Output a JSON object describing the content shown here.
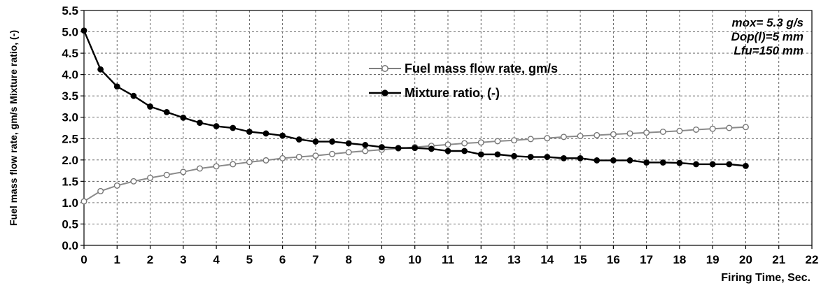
{
  "chart_data": {
    "type": "line",
    "xlabel": "Firing Time, Sec.",
    "ylabel": "Fuel mass flow rate, gm/s   Mixture ratio, (-)",
    "xlim": [
      0,
      22
    ],
    "ylim": [
      0,
      5.5
    ],
    "x_ticks": [
      "0",
      "1",
      "2",
      "3",
      "4",
      "5",
      "6",
      "7",
      "8",
      "9",
      "10",
      "11",
      "12",
      "13",
      "14",
      "15",
      "16",
      "17",
      "18",
      "19",
      "20",
      "21",
      "22"
    ],
    "y_ticks": [
      "0.0",
      "0.5",
      "1.0",
      "1.5",
      "2.0",
      "2.5",
      "3.0",
      "3.5",
      "4.0",
      "4.5",
      "5.0",
      "5.5"
    ],
    "grid": true,
    "annotations": [
      "mox= 5.3 g/s",
      "Dop(l)=5 mm",
      "Lfu=150 mm"
    ],
    "legend_position": "center",
    "series": [
      {
        "name": "Fuel mass flow rate, gm/s",
        "marker": "open-circle",
        "color": "#808080",
        "x": [
          0,
          0.5,
          1,
          1.5,
          2,
          2.5,
          3,
          3.5,
          4,
          4.5,
          5,
          5.5,
          6,
          6.5,
          7,
          7.5,
          8,
          8.5,
          9,
          9.5,
          10,
          10.5,
          11,
          11.5,
          12,
          12.5,
          13,
          13.5,
          14,
          14.5,
          15,
          15.5,
          16,
          16.5,
          17,
          17.5,
          18,
          18.5,
          19,
          19.5,
          20
        ],
        "values": [
          1.03,
          1.27,
          1.4,
          1.5,
          1.58,
          1.65,
          1.72,
          1.8,
          1.85,
          1.9,
          1.95,
          1.99,
          2.04,
          2.07,
          2.1,
          2.14,
          2.18,
          2.21,
          2.24,
          2.27,
          2.3,
          2.33,
          2.36,
          2.39,
          2.41,
          2.44,
          2.46,
          2.49,
          2.51,
          2.54,
          2.56,
          2.58,
          2.6,
          2.62,
          2.64,
          2.66,
          2.68,
          2.71,
          2.73,
          2.75,
          2.77
        ]
      },
      {
        "name": "Mixture ratio, (-)",
        "marker": "filled-circle",
        "color": "#000000",
        "x": [
          0,
          0.5,
          1,
          1.5,
          2,
          2.5,
          3,
          3.5,
          4,
          4.5,
          5,
          5.5,
          6,
          6.5,
          7,
          7.5,
          8,
          8.5,
          9,
          9.5,
          10,
          10.5,
          11,
          11.5,
          12,
          12.5,
          13,
          13.5,
          14,
          14.5,
          15,
          15.5,
          16,
          16.5,
          17,
          17.5,
          18,
          18.5,
          19,
          19.5,
          20
        ],
        "values": [
          5.03,
          4.12,
          3.72,
          3.5,
          3.25,
          3.12,
          2.99,
          2.87,
          2.79,
          2.75,
          2.66,
          2.62,
          2.57,
          2.48,
          2.43,
          2.43,
          2.39,
          2.35,
          2.3,
          2.28,
          2.28,
          2.26,
          2.21,
          2.21,
          2.13,
          2.13,
          2.09,
          2.07,
          2.07,
          2.04,
          2.04,
          1.99,
          1.99,
          1.99,
          1.94,
          1.94,
          1.93,
          1.9,
          1.9,
          1.9,
          1.86
        ]
      }
    ]
  }
}
